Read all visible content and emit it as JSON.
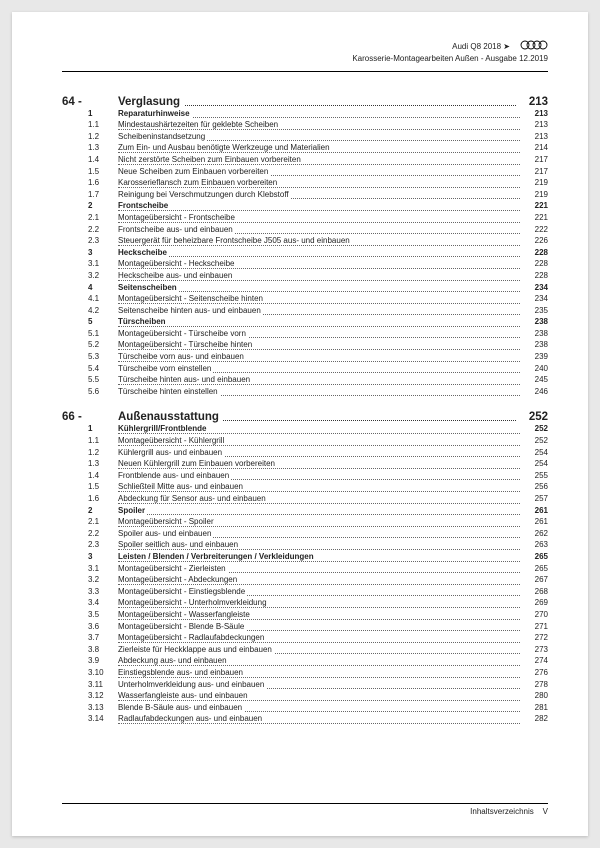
{
  "header": {
    "model": "Audi Q8 2018 ➤",
    "title": "Karosserie-Montagearbeiten Außen - Ausgabe 12.2019"
  },
  "chapters": [
    {
      "num": "64",
      "title": "Verglasung",
      "page": "213",
      "rows": [
        {
          "n": "1",
          "t": "Reparaturhinweise",
          "p": "213",
          "s": true
        },
        {
          "n": "1.1",
          "t": "Mindestaushärtezeiten für geklebte Scheiben",
          "p": "213"
        },
        {
          "n": "1.2",
          "t": "Scheibeninstandsetzung",
          "p": "213"
        },
        {
          "n": "1.3",
          "t": "Zum Ein- und Ausbau benötigte Werkzeuge und Materialien",
          "p": "214"
        },
        {
          "n": "1.4",
          "t": "Nicht zerstörte Scheiben zum Einbauen vorbereiten",
          "p": "217"
        },
        {
          "n": "1.5",
          "t": "Neue Scheiben zum Einbauen vorbereiten",
          "p": "217"
        },
        {
          "n": "1.6",
          "t": "Karosserieflansch zum Einbauen vorbereiten",
          "p": "219"
        },
        {
          "n": "1.7",
          "t": "Reinigung bei Verschmutzungen durch Klebstoff",
          "p": "219"
        },
        {
          "n": "2",
          "t": "Frontscheibe",
          "p": "221",
          "s": true
        },
        {
          "n": "2.1",
          "t": "Montageübersicht - Frontscheibe",
          "p": "221"
        },
        {
          "n": "2.2",
          "t": "Frontscheibe aus- und einbauen",
          "p": "222"
        },
        {
          "n": "2.3",
          "t": "Steuergerät für beheizbare Frontscheibe J505 aus- und einbauen",
          "p": "226"
        },
        {
          "n": "3",
          "t": "Heckscheibe",
          "p": "228",
          "s": true
        },
        {
          "n": "3.1",
          "t": "Montageübersicht - Heckscheibe",
          "p": "228"
        },
        {
          "n": "3.2",
          "t": "Heckscheibe aus- und einbauen",
          "p": "228"
        },
        {
          "n": "4",
          "t": "Seitenscheiben",
          "p": "234",
          "s": true
        },
        {
          "n": "4.1",
          "t": "Montageübersicht - Seitenscheibe hinten",
          "p": "234"
        },
        {
          "n": "4.2",
          "t": "Seitenscheibe hinten aus- und einbauen",
          "p": "235"
        },
        {
          "n": "5",
          "t": "Türscheiben",
          "p": "238",
          "s": true
        },
        {
          "n": "5.1",
          "t": "Montageübersicht - Türscheibe vorn",
          "p": "238"
        },
        {
          "n": "5.2",
          "t": "Montageübersicht - Türscheibe hinten",
          "p": "238"
        },
        {
          "n": "5.3",
          "t": "Türscheibe vorn aus- und einbauen",
          "p": "239"
        },
        {
          "n": "5.4",
          "t": "Türscheibe vorn einstellen",
          "p": "240"
        },
        {
          "n": "5.5",
          "t": "Türscheibe hinten aus- und einbauen",
          "p": "245"
        },
        {
          "n": "5.6",
          "t": "Türscheibe hinten einstellen",
          "p": "246"
        }
      ]
    },
    {
      "num": "66",
      "title": "Außenausstattung",
      "page": "252",
      "rows": [
        {
          "n": "1",
          "t": "Kühlergrill/Frontblende",
          "p": "252",
          "s": true
        },
        {
          "n": "1.1",
          "t": "Montageübersicht - Kühlergrill",
          "p": "252"
        },
        {
          "n": "1.2",
          "t": "Kühlergrill aus- und einbauen",
          "p": "254"
        },
        {
          "n": "1.3",
          "t": "Neuen Kühlergrill zum Einbauen vorbereiten",
          "p": "254"
        },
        {
          "n": "1.4",
          "t": "Frontblende aus- und einbauen",
          "p": "255"
        },
        {
          "n": "1.5",
          "t": "Schließteil Mitte aus- und einbauen",
          "p": "256"
        },
        {
          "n": "1.6",
          "t": "Abdeckung für Sensor aus- und einbauen",
          "p": "257"
        },
        {
          "n": "2",
          "t": "Spoiler",
          "p": "261",
          "s": true
        },
        {
          "n": "2.1",
          "t": "Montageübersicht - Spoiler",
          "p": "261"
        },
        {
          "n": "2.2",
          "t": "Spoiler aus- und einbauen",
          "p": "262"
        },
        {
          "n": "2.3",
          "t": "Spoiler seitlich aus- und einbauen",
          "p": "263"
        },
        {
          "n": "3",
          "t": "Leisten / Blenden / Verbreiterungen / Verkleidungen",
          "p": "265",
          "s": true
        },
        {
          "n": "3.1",
          "t": "Montageübersicht - Zierleisten",
          "p": "265"
        },
        {
          "n": "3.2",
          "t": "Montageübersicht - Abdeckungen",
          "p": "267"
        },
        {
          "n": "3.3",
          "t": "Montageübersicht - Einstiegsblende",
          "p": "268"
        },
        {
          "n": "3.4",
          "t": "Montageübersicht - Unterholmverkleidung",
          "p": "269"
        },
        {
          "n": "3.5",
          "t": "Montageübersicht - Wasserfangleiste",
          "p": "270"
        },
        {
          "n": "3.6",
          "t": "Montageübersicht - Blende B-Säule",
          "p": "271"
        },
        {
          "n": "3.7",
          "t": "Montageübersicht - Radlaufabdeckungen",
          "p": "272"
        },
        {
          "n": "3.8",
          "t": "Zierleiste für Heckklappe aus und einbauen",
          "p": "273"
        },
        {
          "n": "3.9",
          "t": "Abdeckung aus- und einbauen",
          "p": "274"
        },
        {
          "n": "3.10",
          "t": "Einstiegsblende aus- und einbauen",
          "p": "276"
        },
        {
          "n": "3.11",
          "t": "Unterholmverkleidung aus- und einbauen",
          "p": "278"
        },
        {
          "n": "3.12",
          "t": "Wasserfangleiste aus- und einbauen",
          "p": "280"
        },
        {
          "n": "3.13",
          "t": "Blende B-Säule aus- und einbauen",
          "p": "281"
        },
        {
          "n": "3.14",
          "t": "Radlaufabdeckungen aus- und einbauen",
          "p": "282"
        }
      ]
    }
  ],
  "footer": {
    "label": "Inhaltsverzeichnis",
    "pagenum": "V"
  }
}
